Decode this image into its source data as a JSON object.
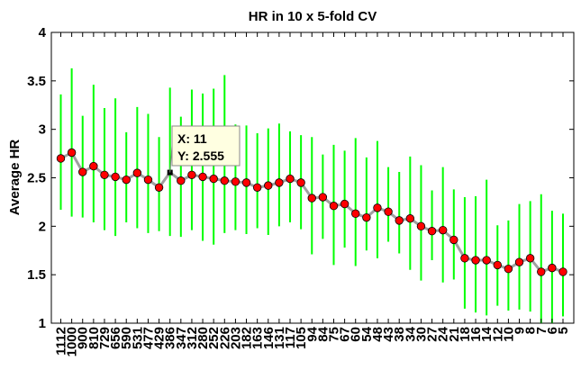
{
  "chart_data": {
    "type": "line",
    "title": "HR in 10 x 5-fold CV",
    "ylabel": "Average HR",
    "xlabel": "",
    "ylim": [
      1,
      4
    ],
    "yticks": [
      1,
      1.5,
      2,
      2.5,
      3,
      3.5,
      4
    ],
    "grid": false,
    "categories": [
      "1112",
      "1000",
      "900",
      "810",
      "729",
      "656",
      "590",
      "531",
      "477",
      "429",
      "386",
      "347",
      "312",
      "280",
      "252",
      "226",
      "203",
      "182",
      "163",
      "146",
      "131",
      "117",
      "105",
      "94",
      "84",
      "75",
      "67",
      "60",
      "54",
      "48",
      "43",
      "38",
      "34",
      "30",
      "27",
      "24",
      "21",
      "18",
      "16",
      "14",
      "12",
      "10",
      "9",
      "8",
      "7",
      "6",
      "5"
    ],
    "series": [
      {
        "values": [
          2.7,
          2.76,
          2.56,
          2.62,
          2.53,
          2.51,
          2.48,
          2.55,
          2.48,
          2.4,
          2.555,
          2.47,
          2.53,
          2.51,
          2.49,
          2.47,
          2.46,
          2.45,
          2.4,
          2.42,
          2.45,
          2.49,
          2.45,
          2.29,
          2.3,
          2.21,
          2.23,
          2.13,
          2.09,
          2.19,
          2.15,
          2.06,
          2.08,
          2.0,
          1.95,
          1.96,
          1.86,
          1.67,
          1.65,
          1.65,
          1.6,
          1.56,
          1.63,
          1.67,
          1.53,
          1.57,
          1.53
        ],
        "lower": [
          2.17,
          2.1,
          2.09,
          2.04,
          1.96,
          1.9,
          2.04,
          1.98,
          1.93,
          1.95,
          1.9,
          1.89,
          1.96,
          1.85,
          1.81,
          1.93,
          1.96,
          1.92,
          1.98,
          1.91,
          2.0,
          2.04,
          1.97,
          1.71,
          1.87,
          1.6,
          1.78,
          1.59,
          1.75,
          1.67,
          1.84,
          1.72,
          1.55,
          1.44,
          1.65,
          1.42,
          1.45,
          1.15,
          1.11,
          1.08,
          1.18,
          1.13,
          1.14,
          1.12,
          1.0,
          0.98,
          1.07
        ],
        "upper": [
          3.36,
          3.63,
          3.14,
          3.46,
          3.22,
          3.32,
          2.97,
          3.23,
          3.16,
          2.92,
          3.43,
          3.13,
          3.41,
          3.37,
          3.42,
          3.56,
          3.05,
          3.04,
          2.96,
          3.01,
          3.06,
          2.98,
          2.94,
          2.92,
          2.74,
          2.84,
          2.78,
          2.91,
          2.71,
          2.88,
          2.61,
          2.56,
          2.72,
          2.63,
          2.37,
          2.61,
          2.38,
          2.3,
          2.31,
          2.48,
          2.01,
          2.06,
          2.23,
          2.26,
          2.33,
          2.16,
          2.13
        ]
      }
    ],
    "colors": {
      "line": "#a0a0a0",
      "marker": "#ff0000",
      "errorbar": "#00ff00"
    },
    "datatip": {
      "x_label": "X: 11",
      "y_label": "Y: 2.555",
      "point_index": 10
    }
  }
}
